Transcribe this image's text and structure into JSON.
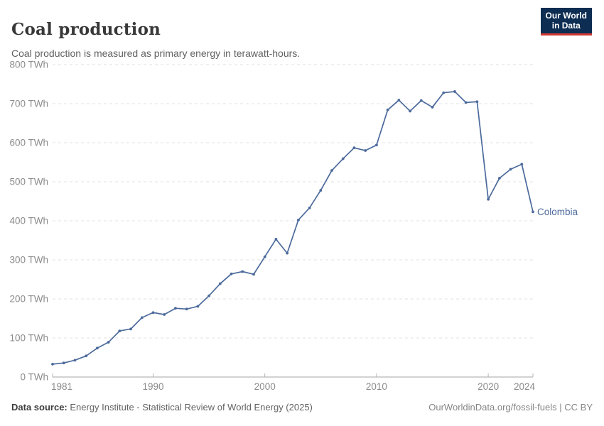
{
  "header": {
    "title": "Coal production",
    "subtitle": "Coal production is measured as primary energy in terawatt-hours.",
    "logo": {
      "line1": "Our World",
      "line2": "in Data",
      "bg_color": "#0d2d52",
      "stripe_color": "#d13832"
    }
  },
  "chart_data": {
    "type": "line",
    "title": "Coal production",
    "subtitle": "Coal production is measured as primary energy in terawatt-hours.",
    "unit": "TWh",
    "xlabel": "",
    "ylabel": "",
    "ylim": [
      0,
      800
    ],
    "ytick_step": 100,
    "grid": true,
    "legend_position": "end-of-line",
    "x": [
      1981,
      1982,
      1983,
      1984,
      1985,
      1986,
      1987,
      1988,
      1989,
      1990,
      1991,
      1992,
      1993,
      1994,
      1995,
      1996,
      1997,
      1998,
      1999,
      2000,
      2001,
      2002,
      2003,
      2004,
      2005,
      2006,
      2007,
      2008,
      2009,
      2010,
      2011,
      2012,
      2013,
      2014,
      2015,
      2016,
      2017,
      2018,
      2019,
      2020,
      2021,
      2022,
      2023,
      2024
    ],
    "xticks": [
      1981,
      1990,
      2000,
      2010,
      2020,
      2024
    ],
    "series": [
      {
        "name": "Colombia",
        "color": "#4C6A9C",
        "values": [
          33,
          36,
          43,
          54,
          74,
          89,
          118,
          123,
          152,
          165,
          160,
          176,
          174,
          181,
          208,
          239,
          264,
          270,
          263,
          308,
          353,
          317,
          402,
          433,
          478,
          529,
          559,
          587,
          580,
          594,
          684,
          709,
          681,
          708,
          691,
          728,
          731,
          703,
          705,
          455,
          509,
          532,
          545,
          423
        ]
      }
    ]
  },
  "footer": {
    "datasource_label": "Data source:",
    "datasource_text": " Energy Institute - Statistical Review of World Energy (2025)",
    "url": "OurWorldinData.org/fossil-fuels",
    "separator": " | ",
    "license": "CC BY"
  }
}
